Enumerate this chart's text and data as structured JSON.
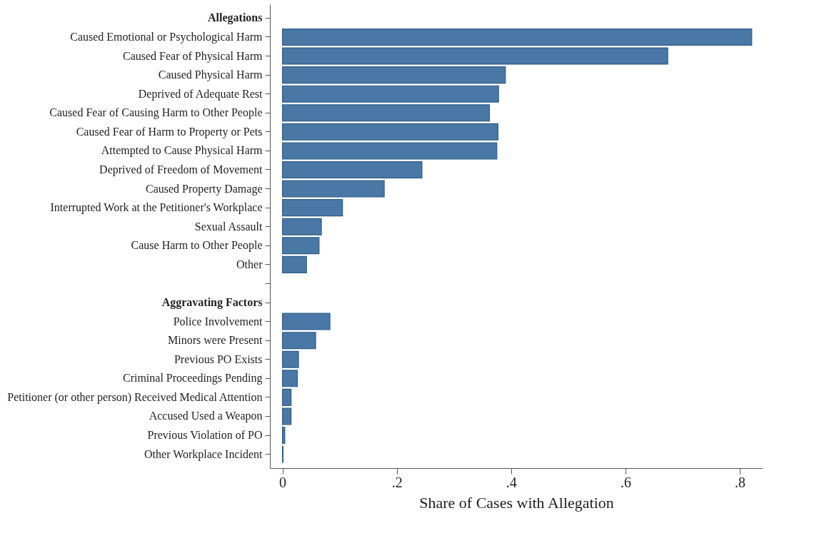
{
  "chart_data": {
    "type": "bar",
    "orientation": "horizontal",
    "xlabel": "Share of Cases with Allegation",
    "categories": [
      "Allegations",
      "Caused Emotional or Psychological Harm",
      "Caused Fear of Physical Harm",
      "Caused Physical Harm",
      "Deprived of Adequate Rest",
      "Caused Fear of Causing Harm to Other People",
      "Caused Fear of Harm to Property or Pets",
      "Attempted to Cause Physical Harm",
      "Deprived of Freedom of Movement",
      "Caused Property Damage",
      "Interrupted Work at the Petitioner's Workplace",
      "Sexual Assault",
      "Cause Harm to Other People",
      "Other",
      null,
      "Aggravating Factors",
      "Police Involvement",
      "Minors were Present",
      "Previous PO Exists",
      "Criminal Proceedings Pending",
      "Petitioner (or other person) Received Medical Attention",
      "Accused Used a Weapon",
      "Previous Violation of PO",
      "Other Workplace Incident"
    ],
    "values": [
      null,
      0.821,
      0.674,
      0.39,
      0.378,
      0.362,
      0.377,
      0.375,
      0.244,
      0.178,
      0.105,
      0.068,
      0.064,
      0.042,
      null,
      null,
      0.083,
      0.058,
      0.028,
      0.026,
      0.015,
      0.015,
      0.004,
      0.001
    ],
    "color": "#4a78a6",
    "xlim": [
      -0.022,
      0.84
    ],
    "xticks": [
      0,
      {
        "value": 0.2,
        "label": ".2"
      },
      {
        "value": 0.4,
        "label": ".4"
      },
      {
        "value": 0.6,
        "label": ".6"
      },
      {
        "value": 0.8,
        "label": ".8"
      }
    ],
    "grid": false
  }
}
